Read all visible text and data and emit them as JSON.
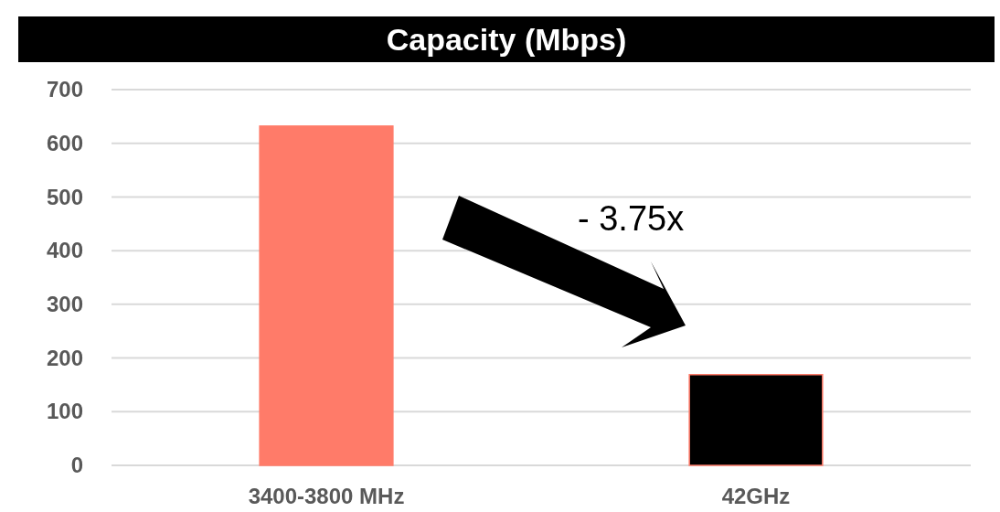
{
  "chart_data": {
    "type": "bar",
    "title": "Capacity (Mbps)",
    "categories": [
      "3400-3800 MHz",
      "42GHz"
    ],
    "values": [
      632,
      169
    ],
    "colors": [
      "#ff7b69",
      "#000000"
    ],
    "ylim": [
      0,
      700
    ],
    "yticks": [
      0,
      100,
      200,
      300,
      400,
      500,
      600,
      700
    ],
    "grid": "y",
    "annotations": [
      "- 3.75x"
    ]
  }
}
